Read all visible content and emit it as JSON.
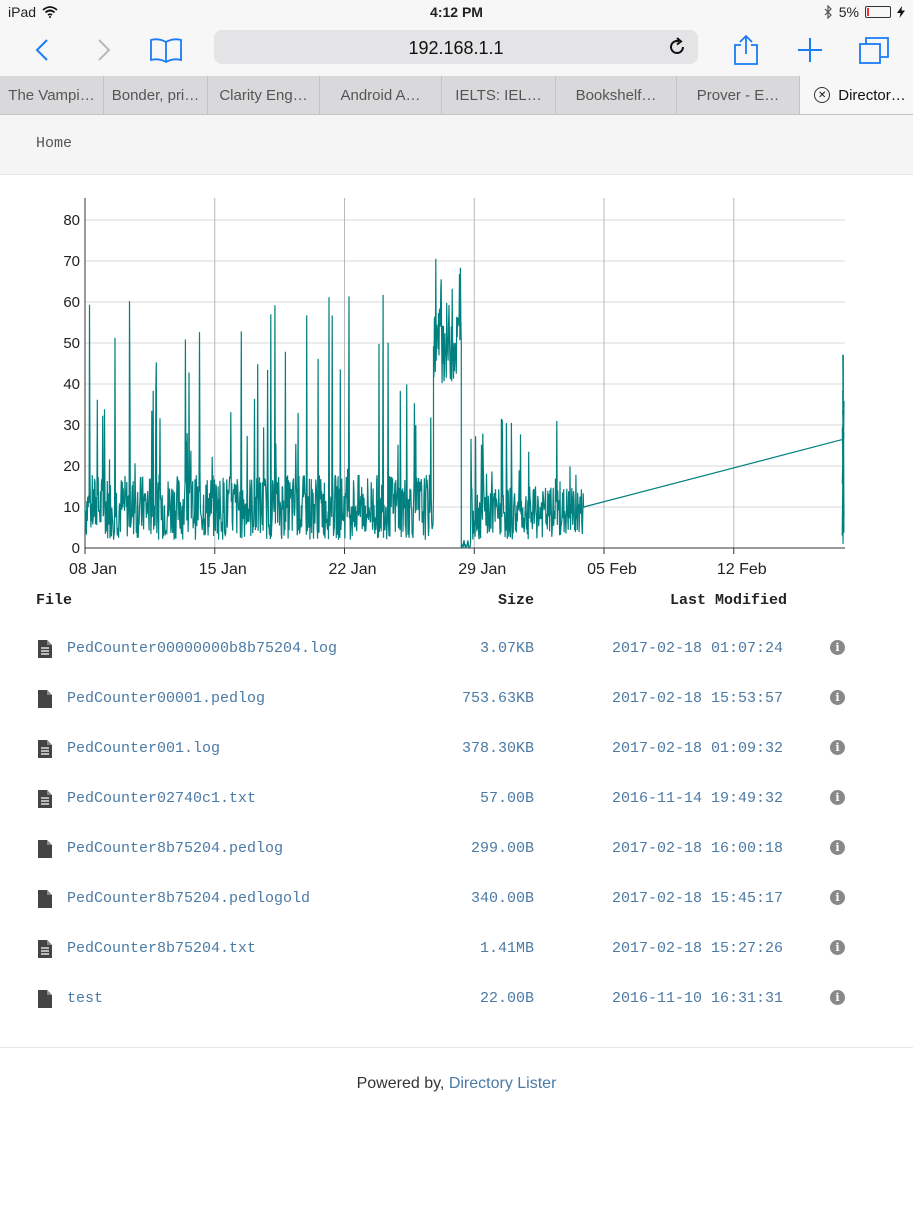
{
  "status_bar": {
    "device": "iPad",
    "time": "4:12 PM",
    "battery": "5%",
    "icons": [
      "wifi-icon",
      "bluetooth-icon",
      "battery-icon",
      "charging-icon"
    ]
  },
  "browser": {
    "url": "192.168.1.1",
    "tabs": [
      {
        "label": "The Vampi…"
      },
      {
        "label": "Bonder, pri…"
      },
      {
        "label": "Clarity Eng…"
      },
      {
        "label": "Android A…"
      },
      {
        "label": "IELTS: IEL…"
      },
      {
        "label": "Bookshelf…"
      },
      {
        "label": "Prover - E…"
      },
      {
        "label": "Director…",
        "active": true
      }
    ]
  },
  "breadcrumb": {
    "home": "Home"
  },
  "chart_data": {
    "type": "line",
    "color": "#00807f",
    "y_ticks": [
      "0",
      "10",
      "20",
      "30",
      "40",
      "50",
      "60",
      "70",
      "80"
    ],
    "x_ticks": [
      "08 Jan",
      "15 Jan",
      "22 Jan",
      "29 Jan",
      "05 Feb",
      "12 Feb"
    ],
    "ylim": [
      0,
      80
    ],
    "x_range_days": [
      0,
      41
    ],
    "grid": true,
    "series": [
      {
        "segments": [
          {
            "x_days_from_08_Jan": [
              0,
              18.8
            ],
            "y_range": [
              2,
              18
            ],
            "spikes_max": 62
          },
          {
            "x_days_from_08_Jan": [
              18.8,
              20.3
            ],
            "y_range": [
              40,
              60
            ],
            "spikes_max": 77
          },
          {
            "x_days_from_08_Jan": [
              20.3,
              20.8
            ],
            "y_range": [
              0,
              2
            ]
          },
          {
            "x_days_from_08_Jan": [
              20.8,
              26.9
            ],
            "y_range": [
              2,
              15
            ],
            "spikes_max": 32
          }
        ],
        "gap_line": {
          "from": {
            "x_days": 26.9,
            "y": 10
          },
          "to": {
            "x_days": 40.9,
            "y": 26.5
          }
        },
        "tail": {
          "x_days": 40.9,
          "y_range": [
            0,
            52
          ]
        }
      }
    ]
  },
  "table": {
    "headers": {
      "file": "File",
      "size": "Size",
      "modified": "Last Modified"
    },
    "rows": [
      {
        "name": "PedCounter00000000b8b75204.log",
        "size": "3.07KB",
        "modified": "2017-02-18 01:07:24",
        "icon": "text-file-icon"
      },
      {
        "name": "PedCounter00001.pedlog",
        "size": "753.63KB",
        "modified": "2017-02-18 15:53:57",
        "icon": "file-icon"
      },
      {
        "name": "PedCounter001.log",
        "size": "378.30KB",
        "modified": "2017-02-18 01:09:32",
        "icon": "text-file-icon"
      },
      {
        "name": "PedCounter02740c1.txt",
        "size": "57.00B",
        "modified": "2016-11-14 19:49:32",
        "icon": "text-file-icon"
      },
      {
        "name": "PedCounter8b75204.pedlog",
        "size": "299.00B",
        "modified": "2017-02-18 16:00:18",
        "icon": "file-icon"
      },
      {
        "name": "PedCounter8b75204.pedlogold",
        "size": "340.00B",
        "modified": "2017-02-18 15:45:17",
        "icon": "file-icon"
      },
      {
        "name": "PedCounter8b75204.txt",
        "size": "1.41MB",
        "modified": "2017-02-18 15:27:26",
        "icon": "text-file-icon"
      },
      {
        "name": "test",
        "size": "22.00B",
        "modified": "2016-11-10 16:31:31",
        "icon": "file-icon"
      }
    ]
  },
  "footer": {
    "prefix": "Powered by, ",
    "link": "Directory Lister"
  }
}
